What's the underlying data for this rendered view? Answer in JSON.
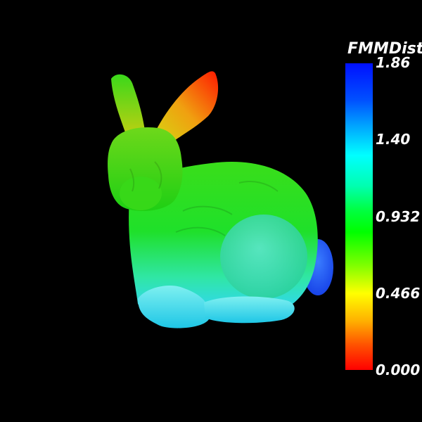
{
  "scene": {
    "object": "bunny-mesh",
    "colors": {
      "background": "#000000",
      "red": "#ff2a00",
      "orange": "#ff9000",
      "yellow": "#e0e000",
      "green": "#30dc10",
      "cyan": "#2cdce8",
      "blue": "#1e5aff"
    }
  },
  "legend": {
    "title": "FMMDist",
    "ticks": [
      "1.86",
      "1.40",
      "0.932",
      "0.466",
      "0.000"
    ]
  }
}
